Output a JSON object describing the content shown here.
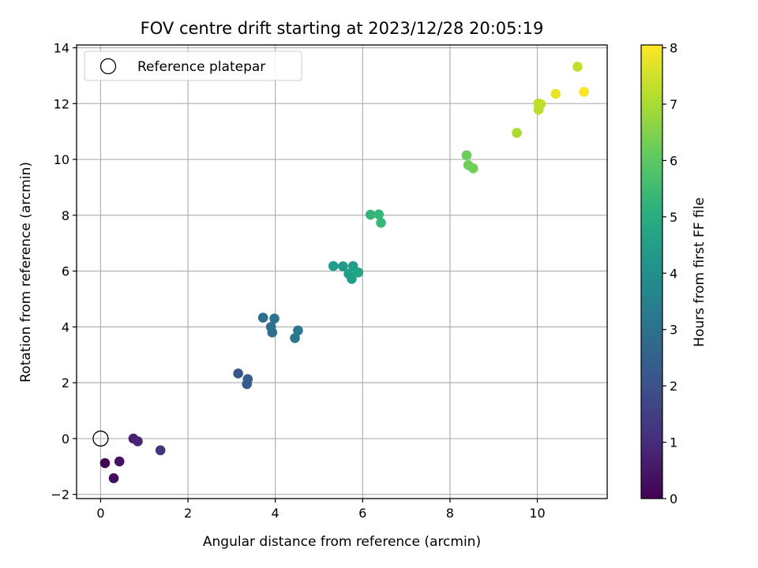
{
  "chart_data": {
    "type": "scatter",
    "title": "FOV centre drift starting at 2023/12/28 20:05:19",
    "xlabel": "Angular distance from reference (arcmin)",
    "ylabel": "Rotation from reference (arcmin)",
    "xlim": [
      -0.55,
      11.6
    ],
    "ylim": [
      -2.15,
      14.1
    ],
    "xticks": [
      0,
      2,
      4,
      6,
      8,
      10
    ],
    "yticks": [
      -2,
      0,
      2,
      4,
      6,
      8,
      10,
      12,
      14
    ],
    "grid": true,
    "legend": {
      "placement": "top-left",
      "entries": [
        "Reference platepar"
      ]
    },
    "reference_point": {
      "x": 0,
      "y": 0,
      "label": "Reference platepar"
    },
    "colorbar": {
      "label": "Hours from first FF file",
      "range": [
        0,
        8.05
      ],
      "ticks": [
        0,
        1,
        2,
        3,
        4,
        5,
        6,
        7,
        8
      ],
      "colormap": "viridis"
    },
    "points": [
      {
        "x": 0.1,
        "y": -0.88,
        "c": 0.1
      },
      {
        "x": 0.3,
        "y": -1.42,
        "c": 0.25
      },
      {
        "x": 0.43,
        "y": -0.82,
        "c": 0.4
      },
      {
        "x": 0.75,
        "y": 0.0,
        "c": 0.7
      },
      {
        "x": 0.85,
        "y": -0.1,
        "c": 0.85
      },
      {
        "x": 1.37,
        "y": -0.42,
        "c": 1.2
      },
      {
        "x": 3.15,
        "y": 2.33,
        "c": 2.2
      },
      {
        "x": 3.37,
        "y": 2.13,
        "c": 2.35
      },
      {
        "x": 3.35,
        "y": 1.95,
        "c": 2.3
      },
      {
        "x": 3.72,
        "y": 4.33,
        "c": 2.9
      },
      {
        "x": 3.9,
        "y": 4.0,
        "c": 2.95
      },
      {
        "x": 3.93,
        "y": 3.8,
        "c": 3.0
      },
      {
        "x": 3.98,
        "y": 4.3,
        "c": 3.05
      },
      {
        "x": 4.45,
        "y": 3.6,
        "c": 3.2
      },
      {
        "x": 4.52,
        "y": 3.87,
        "c": 3.25
      },
      {
        "x": 5.33,
        "y": 6.18,
        "c": 4.4
      },
      {
        "x": 5.55,
        "y": 6.17,
        "c": 4.45
      },
      {
        "x": 5.68,
        "y": 5.9,
        "c": 4.5
      },
      {
        "x": 5.78,
        "y": 6.18,
        "c": 4.55
      },
      {
        "x": 5.75,
        "y": 5.72,
        "c": 4.52
      },
      {
        "x": 5.9,
        "y": 5.95,
        "c": 4.6
      },
      {
        "x": 6.18,
        "y": 8.02,
        "c": 5.3
      },
      {
        "x": 6.37,
        "y": 8.03,
        "c": 5.35
      },
      {
        "x": 6.42,
        "y": 7.73,
        "c": 5.4
      },
      {
        "x": 8.38,
        "y": 10.15,
        "c": 6.2
      },
      {
        "x": 8.42,
        "y": 9.8,
        "c": 6.25
      },
      {
        "x": 8.53,
        "y": 9.68,
        "c": 6.3
      },
      {
        "x": 9.53,
        "y": 10.95,
        "c": 7.0
      },
      {
        "x": 10.03,
        "y": 11.78,
        "c": 7.2
      },
      {
        "x": 10.02,
        "y": 12.0,
        "c": 7.25
      },
      {
        "x": 10.08,
        "y": 11.98,
        "c": 7.3
      },
      {
        "x": 10.42,
        "y": 12.35,
        "c": 7.8
      },
      {
        "x": 10.92,
        "y": 13.32,
        "c": 7.3
      },
      {
        "x": 11.07,
        "y": 12.42,
        "c": 8.0
      }
    ]
  }
}
